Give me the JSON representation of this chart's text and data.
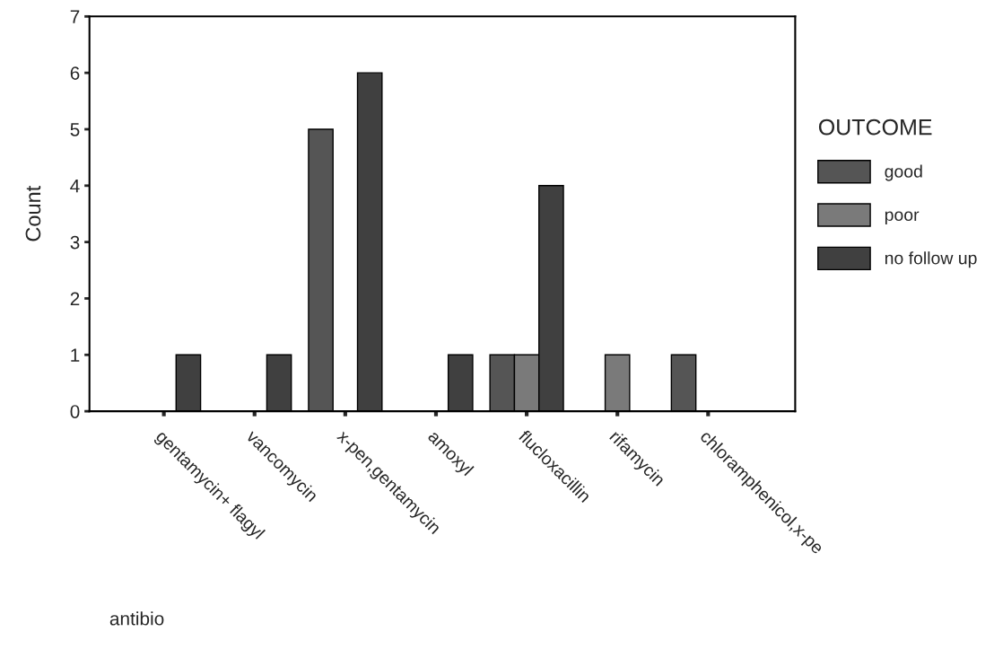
{
  "chart_data": {
    "type": "bar",
    "categories": [
      "gentamycin+ flagyl",
      "vancomycin",
      "x-pen,gentamycin",
      "amoxyl",
      "flucloxacillin",
      "rifamycin",
      "chloramphenicol,x-pe"
    ],
    "series": [
      {
        "name": "good",
        "color": "#555555",
        "values": [
          null,
          null,
          5,
          null,
          1,
          null,
          1
        ]
      },
      {
        "name": "poor",
        "color": "#7a7a7a",
        "values": [
          null,
          null,
          null,
          null,
          1,
          1,
          null
        ]
      },
      {
        "name": "no follow up",
        "color": "#404040",
        "values": [
          1,
          1,
          6,
          1,
          4,
          null,
          null
        ]
      }
    ],
    "xlabel": "antibio",
    "ylabel": "Count",
    "legend_title": "OUTCOME",
    "ylim": [
      0,
      7
    ],
    "yticks": [
      0,
      1,
      2,
      3,
      4,
      5,
      6,
      7
    ],
    "legend": "right",
    "grid": false
  }
}
